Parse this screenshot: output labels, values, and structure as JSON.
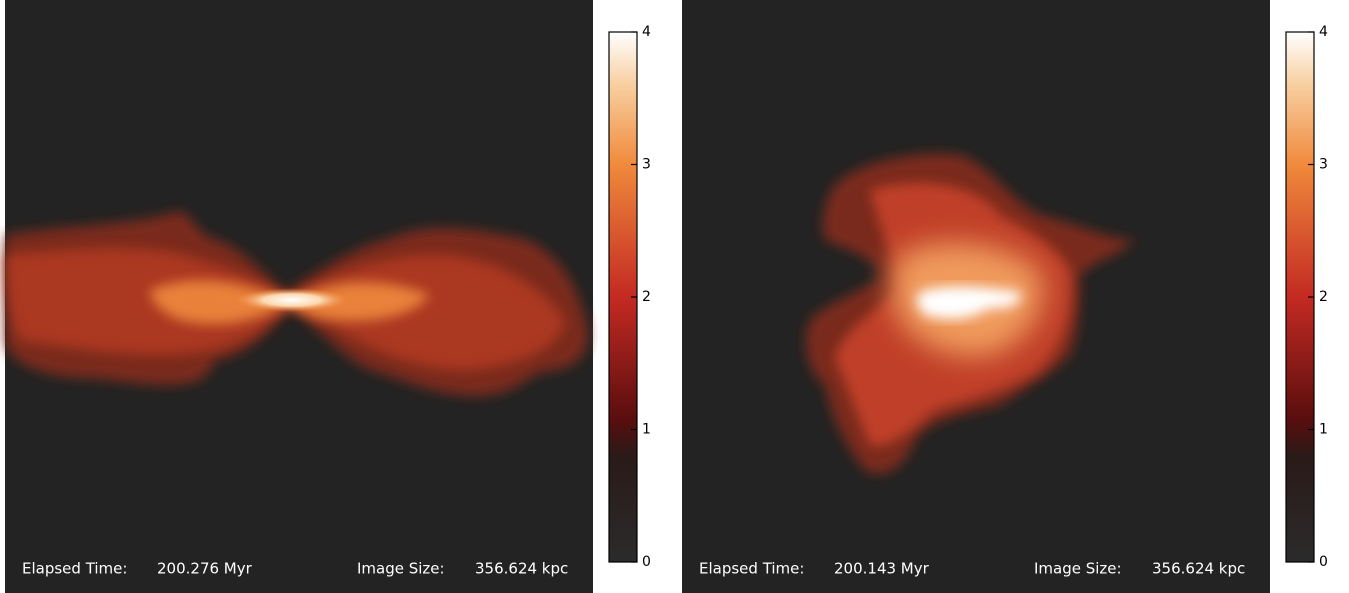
{
  "panels": [
    {
      "elapsed_label": "Elapsed Time:",
      "elapsed_value": "200.276 Myr",
      "size_label": "Image Size:",
      "size_value": "356.624 kpc",
      "colorbar": {
        "ticks": [
          0,
          1,
          2,
          3,
          4
        ]
      }
    },
    {
      "elapsed_label": "Elapsed Time:",
      "elapsed_value": "200.143 Myr",
      "size_label": "Image Size:",
      "size_value": "356.624 kpc",
      "colorbar": {
        "ticks": [
          0,
          1,
          2,
          3,
          4
        ]
      }
    }
  ]
}
